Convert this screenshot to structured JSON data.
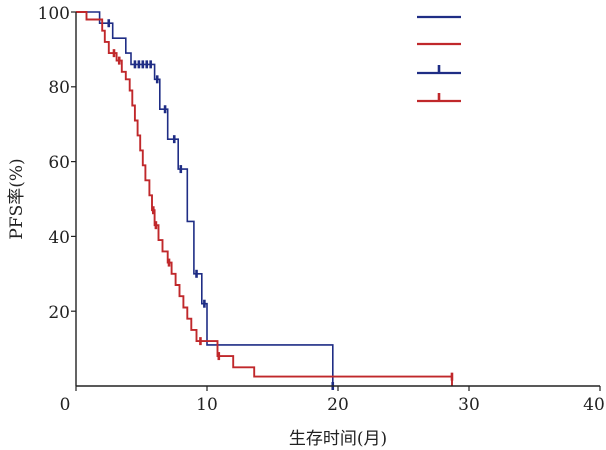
{
  "chart_data": {
    "type": "line",
    "title": "",
    "xlabel": "生存时间(月)",
    "ylabel": "PFS率(%)",
    "xlim": [
      0,
      40
    ],
    "ylim": [
      0,
      100
    ],
    "xticks": [
      "0",
      "10",
      "20",
      "30",
      "40"
    ],
    "yticks": [
      "20",
      "40",
      "60",
      "80",
      "100"
    ],
    "grid": false,
    "legend": {
      "position": "top-right",
      "entries": 4
    },
    "series": [
      {
        "color": "#1f2d85",
        "style": "step",
        "points": [
          [
            0,
            100
          ],
          [
            1.8,
            100
          ],
          [
            1.8,
            97
          ],
          [
            2.8,
            97
          ],
          [
            2.8,
            93
          ],
          [
            3.8,
            93
          ],
          [
            3.8,
            89
          ],
          [
            4.2,
            89
          ],
          [
            4.2,
            86
          ],
          [
            6.0,
            86
          ],
          [
            6.0,
            82
          ],
          [
            6.4,
            82
          ],
          [
            6.4,
            74
          ],
          [
            7.0,
            74
          ],
          [
            7.0,
            66
          ],
          [
            7.8,
            66
          ],
          [
            7.8,
            58
          ],
          [
            8.5,
            58
          ],
          [
            8.5,
            44
          ],
          [
            9.0,
            44
          ],
          [
            9.0,
            30
          ],
          [
            9.6,
            30
          ],
          [
            9.6,
            22
          ],
          [
            10.0,
            22
          ],
          [
            10.0,
            11
          ],
          [
            19.6,
            11
          ],
          [
            19.6,
            0
          ]
        ],
        "censored": [
          [
            2.5,
            97
          ],
          [
            4.5,
            86
          ],
          [
            4.8,
            86
          ],
          [
            5.1,
            86
          ],
          [
            5.4,
            86
          ],
          [
            5.7,
            86
          ],
          [
            6.2,
            82
          ],
          [
            6.8,
            74
          ],
          [
            7.5,
            66
          ],
          [
            8.0,
            58
          ],
          [
            9.2,
            30
          ],
          [
            9.8,
            22
          ],
          [
            19.6,
            0
          ]
        ]
      },
      {
        "color": "#c0282b",
        "style": "step",
        "points": [
          [
            0,
            100
          ],
          [
            0.8,
            100
          ],
          [
            0.8,
            98
          ],
          [
            2.0,
            98
          ],
          [
            2.0,
            95
          ],
          [
            2.2,
            95
          ],
          [
            2.2,
            92
          ],
          [
            2.5,
            92
          ],
          [
            2.5,
            89
          ],
          [
            3.1,
            89
          ],
          [
            3.1,
            87
          ],
          [
            3.5,
            87
          ],
          [
            3.5,
            84
          ],
          [
            3.8,
            84
          ],
          [
            3.8,
            82
          ],
          [
            4.1,
            82
          ],
          [
            4.1,
            79
          ],
          [
            4.3,
            79
          ],
          [
            4.3,
            75
          ],
          [
            4.5,
            75
          ],
          [
            4.5,
            71
          ],
          [
            4.7,
            71
          ],
          [
            4.7,
            67
          ],
          [
            4.9,
            67
          ],
          [
            4.9,
            63
          ],
          [
            5.1,
            63
          ],
          [
            5.1,
            59
          ],
          [
            5.3,
            59
          ],
          [
            5.3,
            55
          ],
          [
            5.6,
            55
          ],
          [
            5.6,
            51
          ],
          [
            5.8,
            51
          ],
          [
            5.8,
            47
          ],
          [
            6.0,
            47
          ],
          [
            6.0,
            43
          ],
          [
            6.3,
            43
          ],
          [
            6.3,
            39
          ],
          [
            6.6,
            39
          ],
          [
            6.6,
            36
          ],
          [
            7.0,
            36
          ],
          [
            7.0,
            33
          ],
          [
            7.3,
            33
          ],
          [
            7.3,
            30
          ],
          [
            7.6,
            30
          ],
          [
            7.6,
            27
          ],
          [
            7.9,
            27
          ],
          [
            7.9,
            24
          ],
          [
            8.2,
            24
          ],
          [
            8.2,
            21
          ],
          [
            8.5,
            21
          ],
          [
            8.5,
            18
          ],
          [
            8.8,
            18
          ],
          [
            8.8,
            15
          ],
          [
            9.2,
            15
          ],
          [
            9.2,
            12
          ],
          [
            10.8,
            12
          ],
          [
            10.8,
            8
          ],
          [
            12.0,
            8
          ],
          [
            12.0,
            5
          ],
          [
            13.6,
            5
          ],
          [
            13.6,
            2.5
          ],
          [
            28.7,
            2.5
          ],
          [
            28.7,
            0
          ]
        ],
        "censored": [
          [
            2.9,
            89
          ],
          [
            3.3,
            87
          ],
          [
            5.9,
            47
          ],
          [
            6.1,
            43
          ],
          [
            7.1,
            33
          ],
          [
            9.5,
            12
          ],
          [
            10.9,
            8
          ],
          [
            28.7,
            2.5
          ]
        ]
      }
    ]
  }
}
